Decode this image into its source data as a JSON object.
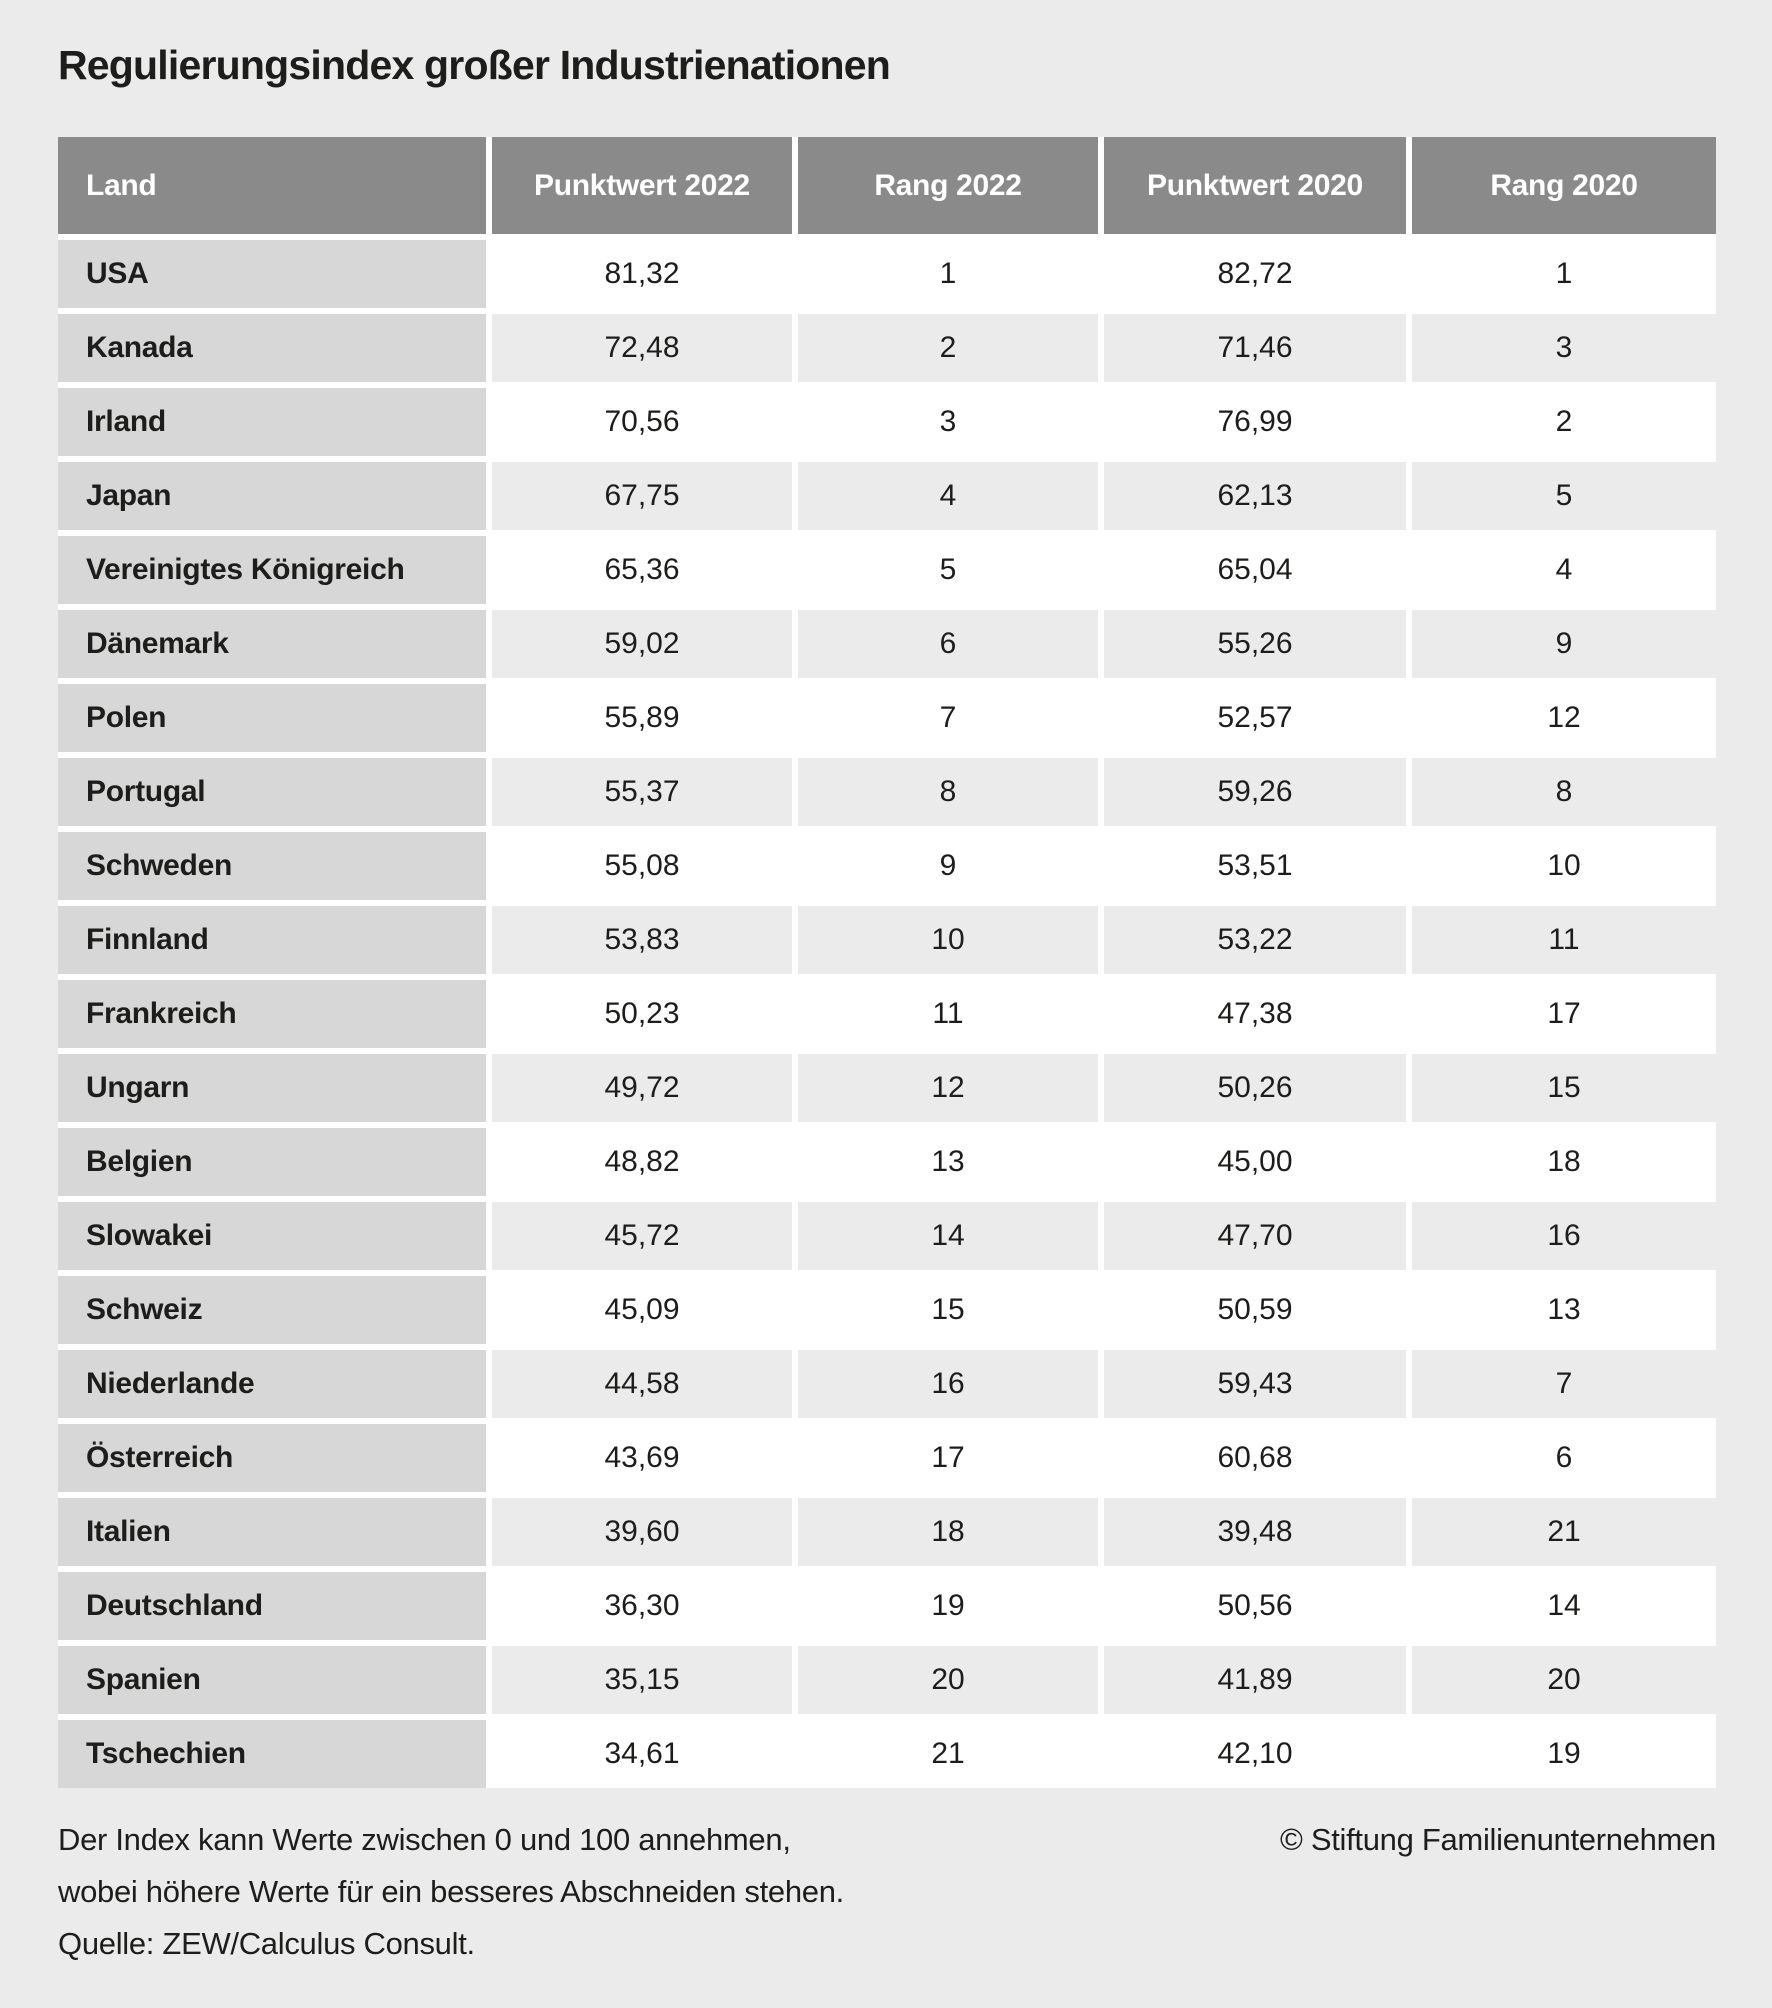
{
  "title": "Regulierungsindex großer Industrienationen",
  "chart_data": {
    "type": "table",
    "title": "Regulierungsindex großer Industrienationen",
    "columns": [
      "Land",
      "Punktwert 2022",
      "Rang 2022",
      "Punktwert 2020",
      "Rang 2020"
    ],
    "value_range_note": "Index 0-100, höhere Werte = besseres Abschneiden",
    "rows": [
      {
        "land": "USA",
        "punktwert_2022": "81,32",
        "rang_2022": "1",
        "punktwert_2020": "82,72",
        "rang_2020": "1"
      },
      {
        "land": "Kanada",
        "punktwert_2022": "72,48",
        "rang_2022": "2",
        "punktwert_2020": "71,46",
        "rang_2020": "3"
      },
      {
        "land": "Irland",
        "punktwert_2022": "70,56",
        "rang_2022": "3",
        "punktwert_2020": "76,99",
        "rang_2020": "2"
      },
      {
        "land": "Japan",
        "punktwert_2022": "67,75",
        "rang_2022": "4",
        "punktwert_2020": "62,13",
        "rang_2020": "5"
      },
      {
        "land": "Vereinigtes Königreich",
        "punktwert_2022": "65,36",
        "rang_2022": "5",
        "punktwert_2020": "65,04",
        "rang_2020": "4"
      },
      {
        "land": "Dänemark",
        "punktwert_2022": "59,02",
        "rang_2022": "6",
        "punktwert_2020": "55,26",
        "rang_2020": "9"
      },
      {
        "land": "Polen",
        "punktwert_2022": "55,89",
        "rang_2022": "7",
        "punktwert_2020": "52,57",
        "rang_2020": "12"
      },
      {
        "land": "Portugal",
        "punktwert_2022": "55,37",
        "rang_2022": "8",
        "punktwert_2020": "59,26",
        "rang_2020": "8"
      },
      {
        "land": "Schweden",
        "punktwert_2022": "55,08",
        "rang_2022": "9",
        "punktwert_2020": "53,51",
        "rang_2020": "10"
      },
      {
        "land": "Finnland",
        "punktwert_2022": "53,83",
        "rang_2022": "10",
        "punktwert_2020": "53,22",
        "rang_2020": "11"
      },
      {
        "land": "Frankreich",
        "punktwert_2022": "50,23",
        "rang_2022": "11",
        "punktwert_2020": "47,38",
        "rang_2020": "17"
      },
      {
        "land": "Ungarn",
        "punktwert_2022": "49,72",
        "rang_2022": "12",
        "punktwert_2020": "50,26",
        "rang_2020": "15"
      },
      {
        "land": "Belgien",
        "punktwert_2022": "48,82",
        "rang_2022": "13",
        "punktwert_2020": "45,00",
        "rang_2020": "18"
      },
      {
        "land": "Slowakei",
        "punktwert_2022": "45,72",
        "rang_2022": "14",
        "punktwert_2020": "47,70",
        "rang_2020": "16"
      },
      {
        "land": "Schweiz",
        "punktwert_2022": "45,09",
        "rang_2022": "15",
        "punktwert_2020": "50,59",
        "rang_2020": "13"
      },
      {
        "land": "Niederlande",
        "punktwert_2022": "44,58",
        "rang_2022": "16",
        "punktwert_2020": "59,43",
        "rang_2020": "7"
      },
      {
        "land": "Österreich",
        "punktwert_2022": "43,69",
        "rang_2022": "17",
        "punktwert_2020": "60,68",
        "rang_2020": "6"
      },
      {
        "land": "Italien",
        "punktwert_2022": "39,60",
        "rang_2022": "18",
        "punktwert_2020": "39,48",
        "rang_2020": "21"
      },
      {
        "land": "Deutschland",
        "punktwert_2022": "36,30",
        "rang_2022": "19",
        "punktwert_2020": "50,56",
        "rang_2020": "14"
      },
      {
        "land": "Spanien",
        "punktwert_2022": "35,15",
        "rang_2022": "20",
        "punktwert_2020": "41,89",
        "rang_2020": "20"
      },
      {
        "land": "Tschechien",
        "punktwert_2022": "34,61",
        "rang_2022": "21",
        "punktwert_2020": "42,10",
        "rang_2020": "19"
      }
    ]
  },
  "footer": {
    "note_line1": "Der Index kann Werte zwischen 0 und 100 annehmen,",
    "note_line2": "wobei höhere Werte für ein besseres Abschneiden stehen.",
    "source": "Quelle: ZEW/Calculus Consult.",
    "copyright": "© Stiftung Familienunternehmen"
  },
  "colors": {
    "page_bg": "#ebebeb",
    "header_bg": "#8a8a8a",
    "header_text": "#ffffff",
    "land_cell_bg": "#d7d7d7",
    "row_bg": "#ffffff",
    "row_alt_bg": "#ebebeb",
    "gutter": "#ffffff",
    "text": "#1d1d1b"
  }
}
